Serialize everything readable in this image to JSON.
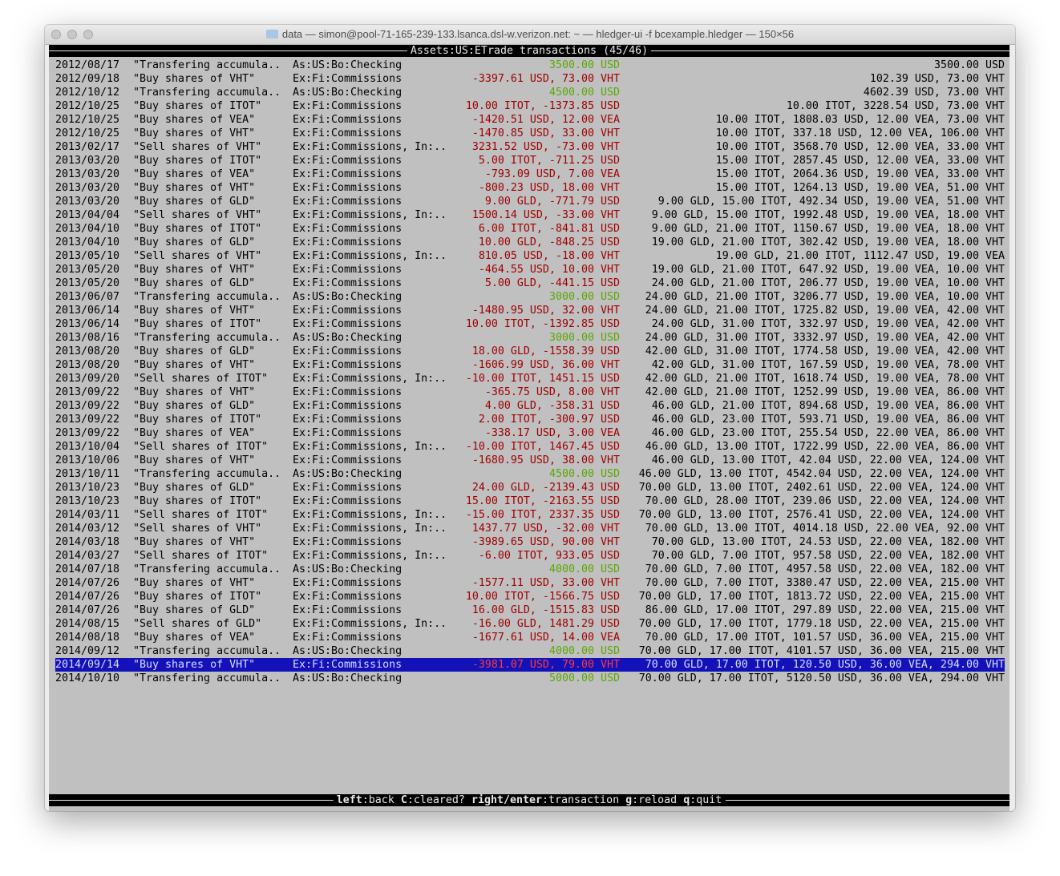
{
  "window": {
    "title": "data — simon@pool-71-165-239-133.lsanca.dsl-w.verizon.net: ~ — hledger-ui -f bcexample.hledger — 150×56"
  },
  "header": {
    "account": "Assets:US:ETrade",
    "label": "transactions",
    "position": "(45/46)"
  },
  "colors": {
    "income": "#5aa800",
    "expense": "#a00000",
    "selection": "#1212b8",
    "background": "#c0c0c0"
  },
  "selected_index": 44,
  "rows": [
    {
      "date": "2012/08/17",
      "desc": "\"Transfering accumula..",
      "account": "As:US:Bo:Checking",
      "change": "3500.00 USD",
      "balance": "3500.00 USD",
      "income": true
    },
    {
      "date": "2012/09/18",
      "desc": "\"Buy shares of VHT\"",
      "account": "Ex:Fi:Commissions",
      "change": "-3397.61 USD, 73.00 VHT",
      "balance": "102.39 USD, 73.00 VHT"
    },
    {
      "date": "2012/10/12",
      "desc": "\"Transfering accumula..",
      "account": "As:US:Bo:Checking",
      "change": "4500.00 USD",
      "balance": "4602.39 USD, 73.00 VHT",
      "income": true
    },
    {
      "date": "2012/10/25",
      "desc": "\"Buy shares of ITOT\"",
      "account": "Ex:Fi:Commissions",
      "change": "10.00 ITOT, -1373.85 USD",
      "balance": "10.00 ITOT, 3228.54 USD, 73.00 VHT"
    },
    {
      "date": "2012/10/25",
      "desc": "\"Buy shares of VEA\"",
      "account": "Ex:Fi:Commissions",
      "change": "-1420.51 USD, 12.00 VEA",
      "balance": "10.00 ITOT, 1808.03 USD, 12.00 VEA, 73.00 VHT"
    },
    {
      "date": "2012/10/25",
      "desc": "\"Buy shares of VHT\"",
      "account": "Ex:Fi:Commissions",
      "change": "-1470.85 USD, 33.00 VHT",
      "balance": "10.00 ITOT, 337.18 USD, 12.00 VEA, 106.00 VHT"
    },
    {
      "date": "2013/02/17",
      "desc": "\"Sell shares of VHT\"",
      "account": "Ex:Fi:Commissions, In:..",
      "change": "3231.52 USD, -73.00 VHT",
      "balance": "10.00 ITOT, 3568.70 USD, 12.00 VEA, 33.00 VHT"
    },
    {
      "date": "2013/03/20",
      "desc": "\"Buy shares of ITOT\"",
      "account": "Ex:Fi:Commissions",
      "change": "5.00 ITOT, -711.25 USD",
      "balance": "15.00 ITOT, 2857.45 USD, 12.00 VEA, 33.00 VHT"
    },
    {
      "date": "2013/03/20",
      "desc": "\"Buy shares of VEA\"",
      "account": "Ex:Fi:Commissions",
      "change": "-793.09 USD, 7.00 VEA",
      "balance": "15.00 ITOT, 2064.36 USD, 19.00 VEA, 33.00 VHT"
    },
    {
      "date": "2013/03/20",
      "desc": "\"Buy shares of VHT\"",
      "account": "Ex:Fi:Commissions",
      "change": "-800.23 USD, 18.00 VHT",
      "balance": "15.00 ITOT, 1264.13 USD, 19.00 VEA, 51.00 VHT"
    },
    {
      "date": "2013/03/20",
      "desc": "\"Buy shares of GLD\"",
      "account": "Ex:Fi:Commissions",
      "change": "9.00 GLD, -771.79 USD",
      "balance": "9.00 GLD, 15.00 ITOT, 492.34 USD, 19.00 VEA, 51.00 VHT"
    },
    {
      "date": "2013/04/04",
      "desc": "\"Sell shares of VHT\"",
      "account": "Ex:Fi:Commissions, In:..",
      "change": "1500.14 USD, -33.00 VHT",
      "balance": "9.00 GLD, 15.00 ITOT, 1992.48 USD, 19.00 VEA, 18.00 VHT"
    },
    {
      "date": "2013/04/10",
      "desc": "\"Buy shares of ITOT\"",
      "account": "Ex:Fi:Commissions",
      "change": "6.00 ITOT, -841.81 USD",
      "balance": "9.00 GLD, 21.00 ITOT, 1150.67 USD, 19.00 VEA, 18.00 VHT"
    },
    {
      "date": "2013/04/10",
      "desc": "\"Buy shares of GLD\"",
      "account": "Ex:Fi:Commissions",
      "change": "10.00 GLD, -848.25 USD",
      "balance": "19.00 GLD, 21.00 ITOT, 302.42 USD, 19.00 VEA, 18.00 VHT"
    },
    {
      "date": "2013/05/10",
      "desc": "\"Sell shares of VHT\"",
      "account": "Ex:Fi:Commissions, In:..",
      "change": "810.05 USD, -18.00 VHT",
      "balance": "19.00 GLD, 21.00 ITOT, 1112.47 USD, 19.00 VEA"
    },
    {
      "date": "2013/05/20",
      "desc": "\"Buy shares of VHT\"",
      "account": "Ex:Fi:Commissions",
      "change": "-464.55 USD, 10.00 VHT",
      "balance": "19.00 GLD, 21.00 ITOT, 647.92 USD, 19.00 VEA, 10.00 VHT"
    },
    {
      "date": "2013/05/20",
      "desc": "\"Buy shares of GLD\"",
      "account": "Ex:Fi:Commissions",
      "change": "5.00 GLD, -441.15 USD",
      "balance": "24.00 GLD, 21.00 ITOT, 206.77 USD, 19.00 VEA, 10.00 VHT"
    },
    {
      "date": "2013/06/07",
      "desc": "\"Transfering accumula..",
      "account": "As:US:Bo:Checking",
      "change": "3000.00 USD",
      "balance": "24.00 GLD, 21.00 ITOT, 3206.77 USD, 19.00 VEA, 10.00 VHT",
      "income": true
    },
    {
      "date": "2013/06/14",
      "desc": "\"Buy shares of VHT\"",
      "account": "Ex:Fi:Commissions",
      "change": "-1480.95 USD, 32.00 VHT",
      "balance": "24.00 GLD, 21.00 ITOT, 1725.82 USD, 19.00 VEA, 42.00 VHT"
    },
    {
      "date": "2013/06/14",
      "desc": "\"Buy shares of ITOT\"",
      "account": "Ex:Fi:Commissions",
      "change": "10.00 ITOT, -1392.85 USD",
      "balance": "24.00 GLD, 31.00 ITOT, 332.97 USD, 19.00 VEA, 42.00 VHT"
    },
    {
      "date": "2013/08/16",
      "desc": "\"Transfering accumula..",
      "account": "As:US:Bo:Checking",
      "change": "3000.00 USD",
      "balance": "24.00 GLD, 31.00 ITOT, 3332.97 USD, 19.00 VEA, 42.00 VHT",
      "income": true
    },
    {
      "date": "2013/08/20",
      "desc": "\"Buy shares of GLD\"",
      "account": "Ex:Fi:Commissions",
      "change": "18.00 GLD, -1558.39 USD",
      "balance": "42.00 GLD, 31.00 ITOT, 1774.58 USD, 19.00 VEA, 42.00 VHT"
    },
    {
      "date": "2013/08/20",
      "desc": "\"Buy shares of VHT\"",
      "account": "Ex:Fi:Commissions",
      "change": "-1606.99 USD, 36.00 VHT",
      "balance": "42.00 GLD, 31.00 ITOT, 167.59 USD, 19.00 VEA, 78.00 VHT"
    },
    {
      "date": "2013/09/20",
      "desc": "\"Sell shares of ITOT\"",
      "account": "Ex:Fi:Commissions, In:..",
      "change": "-10.00 ITOT, 1451.15 USD",
      "balance": "42.00 GLD, 21.00 ITOT, 1618.74 USD, 19.00 VEA, 78.00 VHT"
    },
    {
      "date": "2013/09/22",
      "desc": "\"Buy shares of VHT\"",
      "account": "Ex:Fi:Commissions",
      "change": "-365.75 USD, 8.00 VHT",
      "balance": "42.00 GLD, 21.00 ITOT, 1252.99 USD, 19.00 VEA, 86.00 VHT"
    },
    {
      "date": "2013/09/22",
      "desc": "\"Buy shares of GLD\"",
      "account": "Ex:Fi:Commissions",
      "change": "4.00 GLD, -358.31 USD",
      "balance": "46.00 GLD, 21.00 ITOT, 894.68 USD, 19.00 VEA, 86.00 VHT"
    },
    {
      "date": "2013/09/22",
      "desc": "\"Buy shares of ITOT\"",
      "account": "Ex:Fi:Commissions",
      "change": "2.00 ITOT, -300.97 USD",
      "balance": "46.00 GLD, 23.00 ITOT, 593.71 USD, 19.00 VEA, 86.00 VHT"
    },
    {
      "date": "2013/09/22",
      "desc": "\"Buy shares of VEA\"",
      "account": "Ex:Fi:Commissions",
      "change": "-338.17 USD, 3.00 VEA",
      "balance": "46.00 GLD, 23.00 ITOT, 255.54 USD, 22.00 VEA, 86.00 VHT"
    },
    {
      "date": "2013/10/04",
      "desc": "\"Sell shares of ITOT\"",
      "account": "Ex:Fi:Commissions, In:..",
      "change": "-10.00 ITOT, 1467.45 USD",
      "balance": "46.00 GLD, 13.00 ITOT, 1722.99 USD, 22.00 VEA, 86.00 VHT"
    },
    {
      "date": "2013/10/06",
      "desc": "\"Buy shares of VHT\"",
      "account": "Ex:Fi:Commissions",
      "change": "-1680.95 USD, 38.00 VHT",
      "balance": "46.00 GLD, 13.00 ITOT, 42.04 USD, 22.00 VEA, 124.00 VHT"
    },
    {
      "date": "2013/10/11",
      "desc": "\"Transfering accumula..",
      "account": "As:US:Bo:Checking",
      "change": "4500.00 USD",
      "balance": "46.00 GLD, 13.00 ITOT, 4542.04 USD, 22.00 VEA, 124.00 VHT",
      "income": true
    },
    {
      "date": "2013/10/23",
      "desc": "\"Buy shares of GLD\"",
      "account": "Ex:Fi:Commissions",
      "change": "24.00 GLD, -2139.43 USD",
      "balance": "70.00 GLD, 13.00 ITOT, 2402.61 USD, 22.00 VEA, 124.00 VHT"
    },
    {
      "date": "2013/10/23",
      "desc": "\"Buy shares of ITOT\"",
      "account": "Ex:Fi:Commissions",
      "change": "15.00 ITOT, -2163.55 USD",
      "balance": "70.00 GLD, 28.00 ITOT, 239.06 USD, 22.00 VEA, 124.00 VHT"
    },
    {
      "date": "2014/03/11",
      "desc": "\"Sell shares of ITOT\"",
      "account": "Ex:Fi:Commissions, In:..",
      "change": "-15.00 ITOT, 2337.35 USD",
      "balance": "70.00 GLD, 13.00 ITOT, 2576.41 USD, 22.00 VEA, 124.00 VHT"
    },
    {
      "date": "2014/03/12",
      "desc": "\"Sell shares of VHT\"",
      "account": "Ex:Fi:Commissions, In:..",
      "change": "1437.77 USD, -32.00 VHT",
      "balance": "70.00 GLD, 13.00 ITOT, 4014.18 USD, 22.00 VEA, 92.00 VHT"
    },
    {
      "date": "2014/03/18",
      "desc": "\"Buy shares of VHT\"",
      "account": "Ex:Fi:Commissions",
      "change": "-3989.65 USD, 90.00 VHT",
      "balance": "70.00 GLD, 13.00 ITOT, 24.53 USD, 22.00 VEA, 182.00 VHT"
    },
    {
      "date": "2014/03/27",
      "desc": "\"Sell shares of ITOT\"",
      "account": "Ex:Fi:Commissions, In:..",
      "change": "-6.00 ITOT, 933.05 USD",
      "balance": "70.00 GLD, 7.00 ITOT, 957.58 USD, 22.00 VEA, 182.00 VHT"
    },
    {
      "date": "2014/07/18",
      "desc": "\"Transfering accumula..",
      "account": "As:US:Bo:Checking",
      "change": "4000.00 USD",
      "balance": "70.00 GLD, 7.00 ITOT, 4957.58 USD, 22.00 VEA, 182.00 VHT",
      "income": true
    },
    {
      "date": "2014/07/26",
      "desc": "\"Buy shares of VHT\"",
      "account": "Ex:Fi:Commissions",
      "change": "-1577.11 USD, 33.00 VHT",
      "balance": "70.00 GLD, 7.00 ITOT, 3380.47 USD, 22.00 VEA, 215.00 VHT"
    },
    {
      "date": "2014/07/26",
      "desc": "\"Buy shares of ITOT\"",
      "account": "Ex:Fi:Commissions",
      "change": "10.00 ITOT, -1566.75 USD",
      "balance": "70.00 GLD, 17.00 ITOT, 1813.72 USD, 22.00 VEA, 215.00 VHT"
    },
    {
      "date": "2014/07/26",
      "desc": "\"Buy shares of GLD\"",
      "account": "Ex:Fi:Commissions",
      "change": "16.00 GLD, -1515.83 USD",
      "balance": "86.00 GLD, 17.00 ITOT, 297.89 USD, 22.00 VEA, 215.00 VHT"
    },
    {
      "date": "2014/08/15",
      "desc": "\"Sell shares of GLD\"",
      "account": "Ex:Fi:Commissions, In:..",
      "change": "-16.00 GLD, 1481.29 USD",
      "balance": "70.00 GLD, 17.00 ITOT, 1779.18 USD, 22.00 VEA, 215.00 VHT"
    },
    {
      "date": "2014/08/18",
      "desc": "\"Buy shares of VEA\"",
      "account": "Ex:Fi:Commissions",
      "change": "-1677.61 USD, 14.00 VEA",
      "balance": "70.00 GLD, 17.00 ITOT, 101.57 USD, 36.00 VEA, 215.00 VHT"
    },
    {
      "date": "2014/09/12",
      "desc": "\"Transfering accumula..",
      "account": "As:US:Bo:Checking",
      "change": "4000.00 USD",
      "balance": "70.00 GLD, 17.00 ITOT, 4101.57 USD, 36.00 VEA, 215.00 VHT",
      "income": true
    },
    {
      "date": "2014/09/14",
      "desc": "\"Buy shares of VHT\"",
      "account": "Ex:Fi:Commissions",
      "change": "-3981.07 USD, 79.00 VHT",
      "balance": "70.00 GLD, 17.00 ITOT, 120.50 USD, 36.00 VEA, 294.00 VHT"
    },
    {
      "date": "2014/10/10",
      "desc": "\"Transfering accumula..",
      "account": "As:US:Bo:Checking",
      "change": "5000.00 USD",
      "balance": "70.00 GLD, 17.00 ITOT, 5120.50 USD, 36.00 VEA, 294.00 VHT",
      "income": true
    }
  ],
  "footer": {
    "keys": [
      {
        "key": "left",
        "action": "back"
      },
      {
        "key": "C",
        "action": "cleared?"
      },
      {
        "key": "right/enter",
        "action": "transaction"
      },
      {
        "key": "g",
        "action": "reload"
      },
      {
        "key": "q",
        "action": "quit"
      }
    ]
  }
}
